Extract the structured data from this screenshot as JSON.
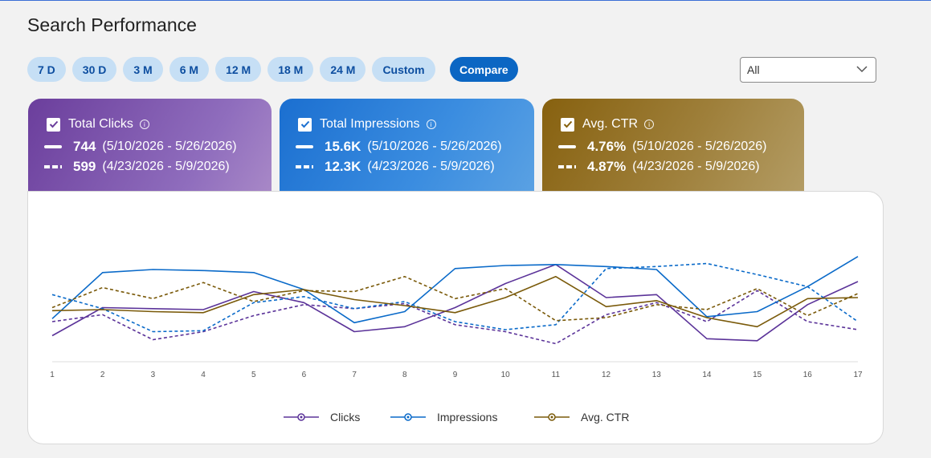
{
  "header": {
    "title": "Search Performance"
  },
  "ranges": [
    {
      "label": "7 D"
    },
    {
      "label": "30 D"
    },
    {
      "label": "3 M"
    },
    {
      "label": "6 M"
    },
    {
      "label": "12 M"
    },
    {
      "label": "18 M"
    },
    {
      "label": "24 M"
    },
    {
      "label": "Custom"
    }
  ],
  "compare_label": "Compare",
  "filter": {
    "selected": "All"
  },
  "cards": {
    "clicks": {
      "title": "Total Clicks",
      "current_value": "744",
      "current_period": "(5/10/2026 - 5/26/2026)",
      "previous_value": "599",
      "previous_period": "(4/23/2026 - 5/9/2026)"
    },
    "impressions": {
      "title": "Total Impressions",
      "current_value": "15.6K",
      "current_period": "(5/10/2026 - 5/26/2026)",
      "previous_value": "12.3K",
      "previous_period": "(4/23/2026 - 5/9/2026)"
    },
    "ctr": {
      "title": "Avg. CTR",
      "current_value": "4.76%",
      "current_period": "(5/10/2026 - 5/26/2026)",
      "previous_value": "4.87%",
      "previous_period": "(4/23/2026 - 5/9/2026)"
    }
  },
  "colors": {
    "clicks": "#5b3399",
    "impressions": "#0a6ac9",
    "ctr": "#7a5a0a"
  },
  "chart_data": {
    "type": "line",
    "x": [
      1,
      2,
      3,
      4,
      5,
      6,
      7,
      8,
      9,
      10,
      11,
      12,
      13,
      14,
      15,
      16,
      17
    ],
    "series": [
      {
        "name": "Clicks",
        "key": "clicks",
        "dashed": false,
        "values": [
          26,
          54,
          53,
          52,
          70,
          59,
          30,
          35,
          54,
          78,
          97,
          64,
          67,
          23,
          21,
          57,
          80
        ]
      },
      {
        "name": "Clicks",
        "key": "clicks",
        "dashed": true,
        "values": [
          40,
          47,
          22,
          30,
          46,
          57,
          53,
          58,
          37,
          30,
          18,
          47,
          59,
          40,
          71,
          40,
          32
        ]
      },
      {
        "name": "Impressions",
        "key": "impressions",
        "dashed": false,
        "values": [
          43,
          89,
          92,
          91,
          89,
          72,
          39,
          50,
          93,
          96,
          97,
          95,
          92,
          45,
          50,
          75,
          105
        ]
      },
      {
        "name": "Impressions",
        "key": "impressions",
        "dashed": true,
        "values": [
          67,
          53,
          30,
          31,
          59,
          65,
          53,
          60,
          40,
          32,
          37,
          93,
          95,
          98,
          87,
          75,
          40
        ]
      },
      {
        "name": "Avg. CTR",
        "key": "ctr",
        "dashed": false,
        "values": [
          51,
          52,
          50,
          49,
          67,
          72,
          62,
          56,
          49,
          64,
          85,
          55,
          61,
          44,
          35,
          63,
          64
        ]
      },
      {
        "name": "Avg. CTR",
        "key": "ctr",
        "dashed": true,
        "values": [
          54,
          74,
          63,
          79,
          60,
          71,
          70,
          85,
          63,
          73,
          41,
          44,
          57,
          52,
          73,
          46,
          68
        ]
      }
    ],
    "legend": [
      "Clicks",
      "Impressions",
      "Avg. CTR"
    ],
    "ylim": [
      0,
      120
    ],
    "grid": false,
    "legend_position": "bottom-center"
  }
}
